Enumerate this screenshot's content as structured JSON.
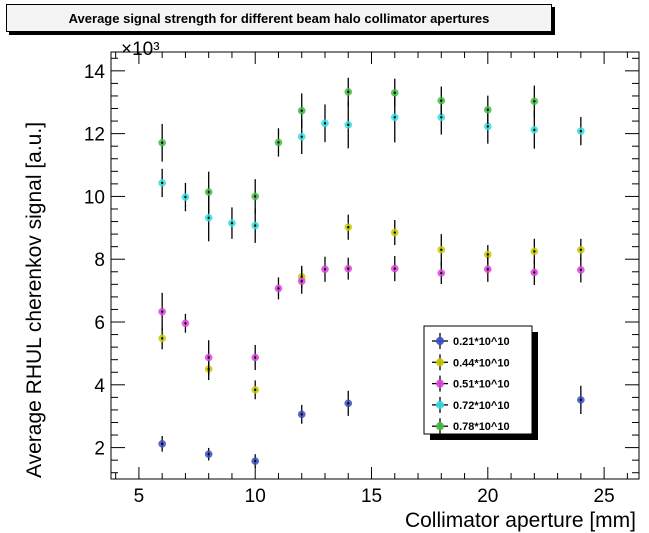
{
  "chart_data": {
    "type": "scatter",
    "title": "Average signal strength for different beam halo collimator apertures",
    "xlabel": "Collimator aperture [mm]",
    "ylabel": "Average RHUL cherenkov signal [a.u.]",
    "y_multiplier": "×10³",
    "xlim": [
      3.8,
      26.5
    ],
    "ylim": [
      1.0,
      14.6
    ],
    "xticks": [
      5,
      10,
      15,
      20,
      25
    ],
    "yticks": [
      2,
      4,
      6,
      8,
      10,
      12,
      14
    ],
    "y_tick_labels": [
      "2",
      "4",
      "6",
      "8",
      "10",
      "12",
      "14"
    ],
    "grid": false,
    "legend_position": "center-right",
    "series": [
      {
        "name": "0.21*10^10",
        "color": "#3b4fc4",
        "x": [
          6,
          8,
          10,
          12,
          14,
          24
        ],
        "y": [
          2.12,
          1.79,
          1.57,
          3.06,
          3.41,
          3.52
        ],
        "err": [
          0.25,
          0.2,
          0.22,
          0.3,
          0.4,
          0.45
        ]
      },
      {
        "name": "0.44*10^10",
        "color": "#c8c800",
        "x": [
          6,
          8,
          10,
          12,
          14,
          16,
          18,
          20,
          22,
          24
        ],
        "y": [
          5.48,
          4.5,
          3.84,
          7.44,
          9.02,
          8.85,
          8.3,
          8.15,
          8.25,
          8.3
        ],
        "err": [
          0.35,
          0.35,
          0.3,
          0.35,
          0.4,
          0.4,
          0.5,
          0.3,
          0.4,
          0.35
        ]
      },
      {
        "name": "0.51*10^10",
        "color": "#dd44dd",
        "x": [
          6,
          7,
          8,
          10,
          11,
          12,
          13,
          14,
          16,
          18,
          20,
          22,
          24
        ],
        "y": [
          6.33,
          5.96,
          4.87,
          4.87,
          7.07,
          7.3,
          7.68,
          7.7,
          7.7,
          7.56,
          7.68,
          7.58,
          7.66
        ],
        "err": [
          0.6,
          0.3,
          0.55,
          0.4,
          0.35,
          0.4,
          0.4,
          0.35,
          0.4,
          0.35,
          0.4,
          0.4,
          0.4
        ]
      },
      {
        "name": "0.72*10^10",
        "color": "#33dddd",
        "x": [
          6,
          7,
          8,
          9,
          10,
          12,
          13,
          14,
          16,
          18,
          20,
          22,
          24
        ],
        "y": [
          10.43,
          9.98,
          9.32,
          9.15,
          9.07,
          11.9,
          12.33,
          12.28,
          12.52,
          12.52,
          12.23,
          12.12,
          12.08
        ],
        "err": [
          0.45,
          0.45,
          0.75,
          0.5,
          0.55,
          0.55,
          0.6,
          0.75,
          0.8,
          0.55,
          0.55,
          0.6,
          0.45
        ]
      },
      {
        "name": "0.78*10^10",
        "color": "#44bb44",
        "x": [
          6,
          8,
          10,
          11,
          12,
          14,
          16,
          18,
          20,
          22
        ],
        "y": [
          11.71,
          10.14,
          10.0,
          11.72,
          12.73,
          13.33,
          13.3,
          13.05,
          12.76,
          13.03
        ],
        "err": [
          0.6,
          0.65,
          0.55,
          0.45,
          0.55,
          0.45,
          0.45,
          0.45,
          0.45,
          0.5
        ]
      }
    ]
  }
}
